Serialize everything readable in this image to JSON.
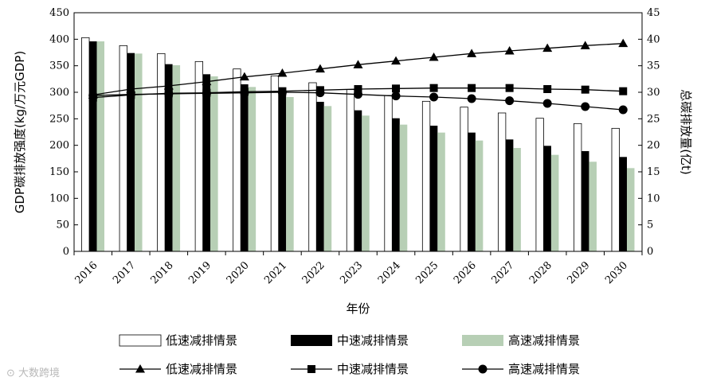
{
  "chart_data": {
    "type": "bar+line",
    "title": "",
    "xlabel": "年份",
    "ylabel_left": "GDP碳排放强度(kg/万元GDP)",
    "ylabel_right": "总碳排放量(亿t)",
    "ylim_left": [
      0,
      450
    ],
    "ylim_right": [
      0,
      45
    ],
    "yticks_left": [
      0,
      50,
      100,
      150,
      200,
      250,
      300,
      350,
      400,
      450
    ],
    "yticks_right": [
      0,
      5,
      10,
      15,
      20,
      25,
      30,
      35,
      40,
      45
    ],
    "categories": [
      "2016",
      "2017",
      "2018",
      "2019",
      "2020",
      "2021",
      "2022",
      "2023",
      "2024",
      "2025",
      "2026",
      "2027",
      "2028",
      "2029",
      "2030"
    ],
    "bar_series": [
      {
        "name": "低速减排情景",
        "axis": "left",
        "color": "#ffffff",
        "values": [
          403,
          388,
          373,
          358,
          344,
          331,
          318,
          305,
          294,
          283,
          272,
          261,
          251,
          241,
          232
        ]
      },
      {
        "name": "中速减排情景",
        "axis": "left",
        "color": "#000000",
        "values": [
          396,
          374,
          353,
          334,
          315,
          298,
          282,
          266,
          251,
          237,
          224,
          211,
          199,
          189,
          178
        ]
      },
      {
        "name": "高速减排情景",
        "axis": "left",
        "color": "#b7cfb5",
        "values": [
          396,
          373,
          351,
          330,
          310,
          291,
          274,
          256,
          239,
          224,
          209,
          195,
          182,
          169,
          157
        ]
      }
    ],
    "line_series": [
      {
        "name": "低速减排情景",
        "axis": "right",
        "marker": "triangle",
        "values": [
          29.5,
          30.6,
          31.2,
          32.0,
          32.9,
          33.6,
          34.4,
          35.2,
          35.9,
          36.6,
          37.3,
          37.8,
          38.3,
          38.8,
          39.2
        ]
      },
      {
        "name": "中速减排情景",
        "axis": "right",
        "marker": "square",
        "values": [
          29.0,
          29.5,
          29.8,
          29.9,
          30.1,
          30.2,
          30.4,
          30.6,
          30.7,
          30.8,
          30.8,
          30.8,
          30.6,
          30.5,
          30.2
        ]
      },
      {
        "name": "高速减排情景",
        "axis": "right",
        "marker": "circle",
        "values": [
          29.4,
          29.6,
          29.7,
          29.8,
          29.9,
          30.0,
          29.9,
          29.6,
          29.3,
          29.1,
          28.8,
          28.4,
          27.9,
          27.3,
          26.7
        ]
      }
    ]
  },
  "watermark": "大数跨境"
}
